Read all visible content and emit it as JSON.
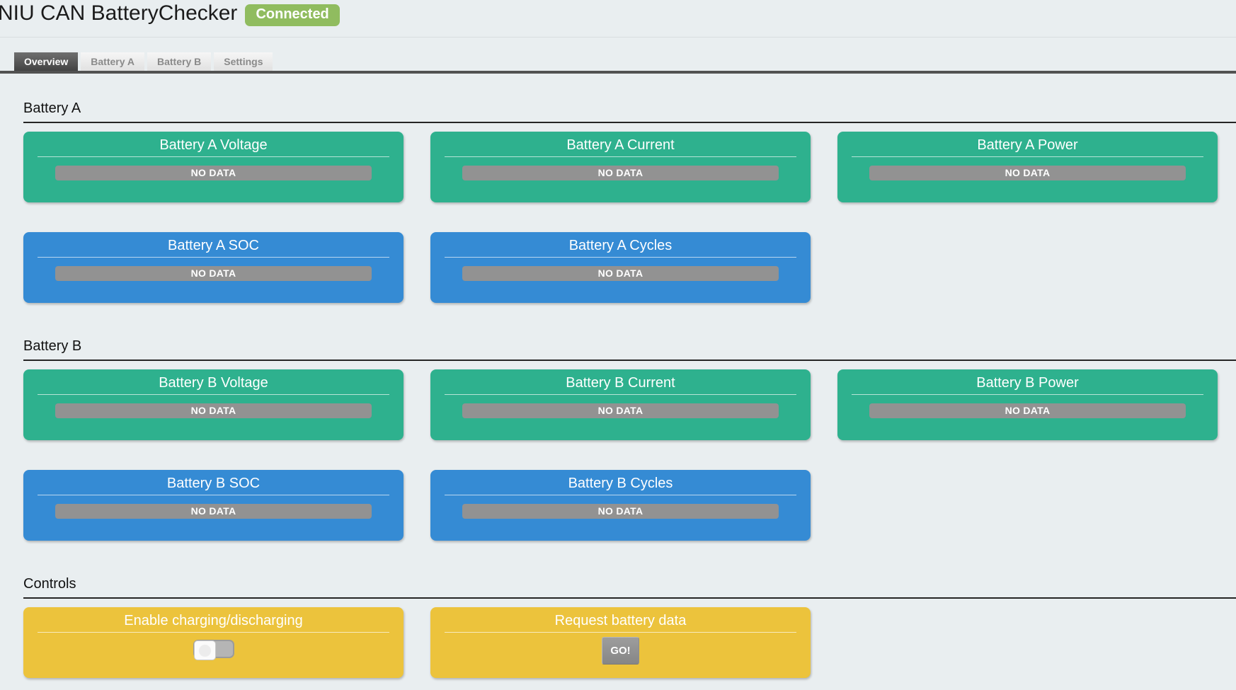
{
  "colors": {
    "card-green": "#2eb18e",
    "card-blue": "#358bd4",
    "card-yellow": "#ecc33c",
    "value-gray": "#929292",
    "badge-green": "#90bc5f",
    "page-bg": "#e9eef0"
  },
  "header": {
    "title": "NIU CAN BatteryChecker",
    "status": "Connected"
  },
  "tabs": {
    "overview": "Overview",
    "battery_a": "Battery A",
    "battery_b": "Battery B",
    "settings": "Settings"
  },
  "battery_a": {
    "heading": "Battery A",
    "voltage": {
      "title": "Battery A Voltage",
      "value": "NO DATA"
    },
    "current": {
      "title": "Battery A Current",
      "value": "NO DATA"
    },
    "power": {
      "title": "Battery A Power",
      "value": "NO DATA"
    },
    "soc": {
      "title": "Battery A SOC",
      "value": "NO DATA"
    },
    "cycles": {
      "title": "Battery A Cycles",
      "value": "NO DATA"
    }
  },
  "battery_b": {
    "heading": "Battery B",
    "voltage": {
      "title": "Battery B Voltage",
      "value": "NO DATA"
    },
    "current": {
      "title": "Battery B Current",
      "value": "NO DATA"
    },
    "power": {
      "title": "Battery B Power",
      "value": "NO DATA"
    },
    "soc": {
      "title": "Battery B SOC",
      "value": "NO DATA"
    },
    "cycles": {
      "title": "Battery B Cycles",
      "value": "NO DATA"
    }
  },
  "controls": {
    "heading": "Controls",
    "enable_charging": {
      "title": "Enable charging/discharging",
      "toggle_state": "off"
    },
    "request_data": {
      "title": "Request battery data",
      "button_label": "GO!"
    }
  }
}
